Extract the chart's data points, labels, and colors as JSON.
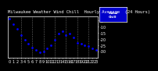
{
  "title": "Milwaukee Weather Wind Chill  Hourly Average  (24 Hours)",
  "hours": [
    0,
    1,
    2,
    3,
    4,
    5,
    6,
    7,
    8,
    9,
    10,
    11,
    12,
    13,
    14,
    15,
    16,
    17,
    18,
    19,
    20,
    21,
    22,
    23
  ],
  "wind_chill": [
    -4,
    -8,
    -12,
    -17,
    -21,
    -24,
    -27,
    -29,
    -31,
    -30,
    -28,
    -25,
    -21,
    -16,
    -14,
    -17,
    -16,
    -19,
    -23,
    -24,
    -25,
    -26,
    -28,
    -29
  ],
  "dot_color": "#0000ff",
  "bg_color": "#000000",
  "plot_bg_color": "#000000",
  "fig_bg_color": "#000000",
  "grid_color": "#666666",
  "legend_bg": "#0000cc",
  "legend_text_color": "#ffffff",
  "title_color": "#ffffff",
  "tick_color": "#ffffff",
  "spine_color": "#ffffff",
  "ylim_min": -35,
  "ylim_max": -2,
  "yticks": [
    -5,
    -10,
    -15,
    -20,
    -25,
    -30
  ],
  "ytick_labels": [
    "-5",
    "-10",
    "-15",
    "-20",
    "-25",
    "-30"
  ],
  "xtick_positions": [
    0,
    1,
    2,
    3,
    4,
    5,
    6,
    7,
    8,
    9,
    10,
    11,
    12,
    13,
    14,
    15,
    16,
    17,
    18,
    19,
    20,
    21,
    22,
    23
  ],
  "xtick_labels": [
    "0",
    "1",
    "2",
    "3",
    "4",
    "5",
    "6",
    "7",
    "8",
    "9",
    "10",
    "11",
    "12",
    "13",
    "14",
    "15",
    "16",
    "17",
    "18",
    "19",
    "20",
    "21",
    "22",
    "23"
  ],
  "vgrid_positions": [
    3,
    6,
    9,
    12,
    15,
    18,
    21
  ],
  "dot_size": 4,
  "font_size": 4.0,
  "tick_font_size": 3.5
}
